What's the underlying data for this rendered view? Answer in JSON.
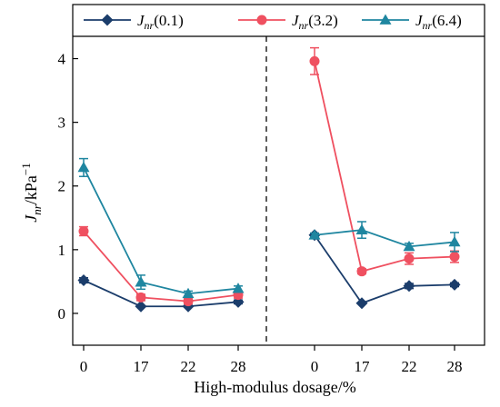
{
  "chart_data": {
    "type": "line",
    "xlabel": "High-modulus dosage/%",
    "ylabel": {
      "base": "J",
      "sub": "nr",
      "unit": "/kPa",
      "sup": "−1"
    },
    "ylim": [
      -0.5,
      4.35
    ],
    "yticks": [
      0,
      1,
      2,
      3,
      4
    ],
    "grid": false,
    "legend_position": "top",
    "groups": [
      {
        "categories": [
          "0",
          "17",
          "22",
          "28"
        ]
      },
      {
        "categories": [
          "0",
          "17",
          "22",
          "28"
        ]
      }
    ],
    "series": [
      {
        "name": {
          "base": "J",
          "sub": "nr",
          "arg": "(0.1)"
        },
        "color": "#1b3d6b",
        "marker": "diamond",
        "groups": [
          {
            "values": [
              0.52,
              0.11,
              0.11,
              0.18
            ],
            "errors": [
              0.04,
              0.02,
              0.02,
              0.03
            ]
          },
          {
            "values": [
              1.23,
              0.16,
              0.43,
              0.45
            ],
            "errors": [
              0.03,
              0.02,
              0.04,
              0.03
            ]
          }
        ]
      },
      {
        "name": {
          "base": "J",
          "sub": "nr",
          "arg": "(3.2)"
        },
        "color": "#ef5060",
        "marker": "circle",
        "groups": [
          {
            "values": [
              1.29,
              0.25,
              0.19,
              0.29
            ],
            "errors": [
              0.07,
              0.05,
              0.04,
              0.05
            ]
          },
          {
            "values": [
              3.96,
              0.66,
              0.86,
              0.89
            ],
            "errors": [
              0.21,
              0.04,
              0.09,
              0.09
            ]
          }
        ]
      },
      {
        "name": {
          "base": "J",
          "sub": "nr",
          "arg": "(6.4)"
        },
        "color": "#1f86a0",
        "marker": "triangle",
        "groups": [
          {
            "values": [
              2.29,
              0.49,
              0.31,
              0.39
            ],
            "errors": [
              0.14,
              0.11,
              0.04,
              0.04
            ]
          },
          {
            "values": [
              1.23,
              1.31,
              1.05,
              1.12
            ],
            "errors": [
              0.03,
              0.13,
              0.05,
              0.15
            ]
          }
        ]
      }
    ]
  }
}
